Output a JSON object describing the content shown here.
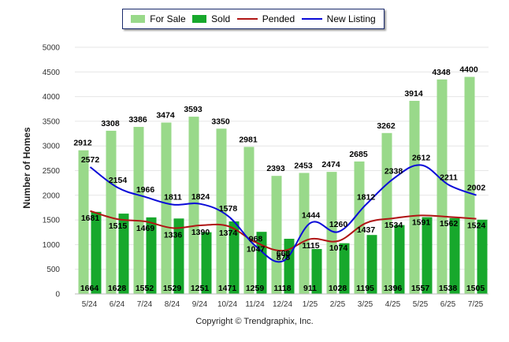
{
  "chart_data": {
    "type": "bar",
    "categories": [
      "5/24",
      "6/24",
      "7/24",
      "8/24",
      "9/24",
      "10/24",
      "11/24",
      "12/24",
      "1/25",
      "2/25",
      "3/25",
      "4/25",
      "5/25",
      "6/25",
      "7/25"
    ],
    "series": [
      {
        "name": "For Sale",
        "kind": "bar",
        "color": "#99d98a",
        "values": [
          2912,
          3308,
          3386,
          3474,
          3593,
          3350,
          2981,
          2393,
          2453,
          2474,
          2685,
          3262,
          3914,
          4348,
          4400
        ]
      },
      {
        "name": "Sold",
        "kind": "bar",
        "color": "#17a82c",
        "values": [
          1664,
          1628,
          1552,
          1529,
          1251,
          1471,
          1259,
          1118,
          911,
          1028,
          1195,
          1396,
          1557,
          1538,
          1505
        ]
      },
      {
        "name": "Pended",
        "kind": "line",
        "color": "#b01515",
        "values": [
          1681,
          1515,
          1469,
          1336,
          1390,
          1374,
          1047,
          878,
          1115,
          1074,
          1437,
          1534,
          1591,
          1562,
          1524
        ]
      },
      {
        "name": "New Listing",
        "kind": "line",
        "color": "#0a0ad8",
        "values": [
          2572,
          2154,
          1966,
          1811,
          1824,
          1578,
          968,
          668,
          1444,
          1260,
          1812,
          2338,
          2612,
          2211,
          2002
        ]
      }
    ],
    "ylabel": "Number of Homes",
    "ylim": [
      0,
      5000
    ],
    "yticks": [
      0,
      500,
      1000,
      1500,
      2000,
      2500,
      3000,
      3500,
      4000,
      4500,
      5000
    ],
    "grid": true,
    "legend_position": "top-center"
  },
  "footer": {
    "copyright": "Copyright © Trendgraphix, Inc."
  }
}
